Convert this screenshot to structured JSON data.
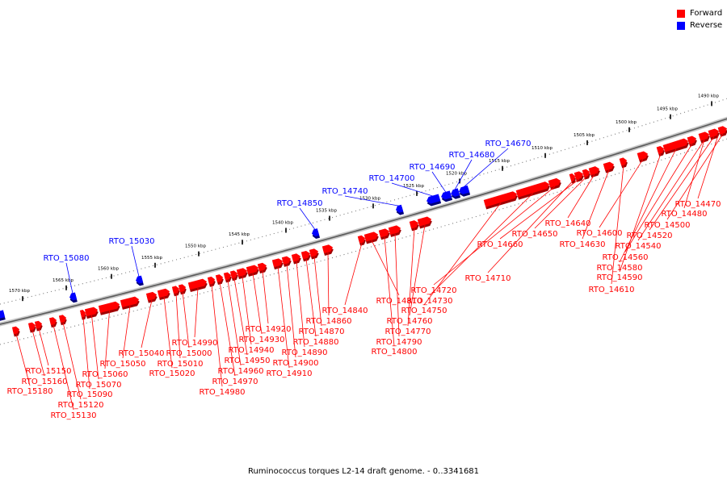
{
  "legend": {
    "forward_label": "Forward",
    "reverse_label": "Reverse",
    "forward_color": "#ff0000",
    "reverse_color": "#0000ff"
  },
  "caption": "Ruminococcus torques L2-14 draft genome. - 0..3341681",
  "ruler": {
    "unit": "kbp",
    "ticks": [
      1570,
      1565,
      1560,
      1555,
      1550,
      1545,
      1540,
      1535,
      1530,
      1525,
      1520,
      1515,
      1510,
      1505,
      1500,
      1495,
      1490
    ],
    "tick_labels": [
      "1570 kbp",
      "1565 kbp",
      "1560 kbp",
      "1555 kbp",
      "1550 kbp",
      "1545 kbp",
      "1540 kbp",
      "1535 kbp",
      "1530 kbp",
      "1525 kbp",
      "1520 kbp",
      "1515 kbp",
      "1510 kbp",
      "1505 kbp",
      "1500 kbp",
      "1495 kbp",
      "1490 kbp"
    ]
  },
  "reverse_genes": [
    "RTO_15080",
    "RTO_15030",
    "RTO_14850",
    "RTO_14740",
    "RTO_14700",
    "RTO_14690",
    "RTO_14680",
    "RTO_14670"
  ],
  "forward_genes": [
    "RTO_15180",
    "RTO_15160",
    "RTO_15150",
    "RTO_15130",
    "RTO_15120",
    "RTO_15090",
    "RTO_15070",
    "RTO_15060",
    "RTO_15050",
    "RTO_15040",
    "RTO_15020",
    "RTO_15010",
    "RTO_15000",
    "RTO_14990",
    "RTO_14980",
    "RTO_14970",
    "RTO_14960",
    "RTO_14950",
    "RTO_14940",
    "RTO_14930",
    "RTO_14920",
    "RTO_14910",
    "RTO_14900",
    "RTO_14890",
    "RTO_14880",
    "RTO_14870",
    "RTO_14860",
    "RTO_14840",
    "RTO_14810",
    "RTO_14800",
    "RTO_14790",
    "RTO_14770",
    "RTO_14760",
    "RTO_14750",
    "RTO_14730",
    "RTO_14720",
    "RTO_14710",
    "RTO_14660",
    "RTO_14650",
    "RTO_14640",
    "RTO_14630",
    "RTO_14610",
    "RTO_14600",
    "RTO_14590",
    "RTO_14580",
    "RTO_14560",
    "RTO_14540",
    "RTO_14520",
    "RTO_14500",
    "RTO_14480",
    "RTO_14470"
  ]
}
